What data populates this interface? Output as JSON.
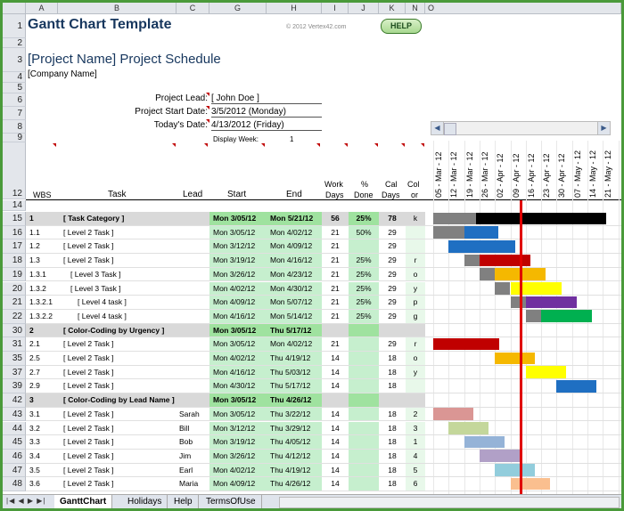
{
  "columns": [
    "A",
    "B",
    "C",
    "G",
    "H",
    "I",
    "J",
    "K",
    "N",
    "O"
  ],
  "title": "Gantt Chart Template",
  "copyright": "© 2012 Vertex42.com",
  "help": "HELP",
  "project_name": "[Project Name] Project Schedule",
  "company": "[Company Name]",
  "labels": {
    "lead": "Project Lead:",
    "start": "Project Start Date:",
    "today": "Today's Date:",
    "week": "Display Week:"
  },
  "values": {
    "lead": "[ John Doe ]",
    "start": "3/5/2012 (Monday)",
    "today": "4/13/2012 (Friday)",
    "week": "1"
  },
  "headers": {
    "wbs": "WBS",
    "task": "Task",
    "lead": "Lead",
    "start": "Start",
    "end": "End",
    "work1": "Work",
    "work2": "Days",
    "done1": "%",
    "done2": "Done",
    "cal1": "Cal",
    "cal2": "Days",
    "col1": "Col",
    "col2": "or"
  },
  "week_dates": [
    "05 - Mar - 12",
    "12 - Mar - 12",
    "19 - Mar - 12",
    "26 - Mar - 12",
    "02 - Apr - 12",
    "09 - Apr - 12",
    "16 - Apr - 12",
    "23 - Apr - 12",
    "30 - Apr - 12",
    "07 - May - 12",
    "14 - May - 12",
    "21 - May - 12"
  ],
  "rows": [
    {
      "num": "15",
      "wbs": "1",
      "task": "[ Task Category ]",
      "lead": "",
      "start": "Mon 3/05/12",
      "end": "Mon 5/21/12",
      "work": "56",
      "done": "25%",
      "cal": "78",
      "color": "k",
      "cat": true
    },
    {
      "num": "16",
      "wbs": "1.1",
      "task": "[ Level 2 Task ]",
      "lead": "",
      "start": "Mon 3/05/12",
      "end": "Mon 4/02/12",
      "work": "21",
      "done": "50%",
      "cal": "29",
      "color": ""
    },
    {
      "num": "17",
      "wbs": "1.2",
      "task": "[ Level 2 Task ]",
      "lead": "",
      "start": "Mon 3/12/12",
      "end": "Mon 4/09/12",
      "work": "21",
      "done": "",
      "cal": "29",
      "color": ""
    },
    {
      "num": "18",
      "wbs": "1.3",
      "task": "[ Level 2 Task ]",
      "lead": "",
      "start": "Mon 3/19/12",
      "end": "Mon 4/16/12",
      "work": "21",
      "done": "25%",
      "cal": "29",
      "color": "r"
    },
    {
      "num": "19",
      "wbs": "1.3.1",
      "task": "[ Level 3 Task ]",
      "lead": "",
      "start": "Mon 3/26/12",
      "end": "Mon 4/23/12",
      "work": "21",
      "done": "25%",
      "cal": "29",
      "color": "o"
    },
    {
      "num": "20",
      "wbs": "1.3.2",
      "task": "[ Level 3 Task ]",
      "lead": "",
      "start": "Mon 4/02/12",
      "end": "Mon 4/30/12",
      "work": "21",
      "done": "25%",
      "cal": "29",
      "color": "y"
    },
    {
      "num": "21",
      "wbs": "1.3.2.1",
      "task": "[ Level 4 task ]",
      "lead": "",
      "start": "Mon 4/09/12",
      "end": "Mon 5/07/12",
      "work": "21",
      "done": "25%",
      "cal": "29",
      "color": "p"
    },
    {
      "num": "22",
      "wbs": "1.3.2.2",
      "task": "[ Level 4 task ]",
      "lead": "",
      "start": "Mon 4/16/12",
      "end": "Mon 5/14/12",
      "work": "21",
      "done": "25%",
      "cal": "29",
      "color": "g"
    },
    {
      "num": "30",
      "wbs": "2",
      "task": "[ Color-Coding by Urgency ]",
      "lead": "",
      "start": "Mon 3/05/12",
      "end": "Thu 5/17/12",
      "work": "",
      "done": "",
      "cal": "",
      "color": "",
      "cat": true
    },
    {
      "num": "31",
      "wbs": "2.1",
      "task": "[ Level 2 Task ]",
      "lead": "",
      "start": "Mon 3/05/12",
      "end": "Mon 4/02/12",
      "work": "21",
      "done": "",
      "cal": "29",
      "color": "r"
    },
    {
      "num": "35",
      "wbs": "2.5",
      "task": "[ Level 2 Task ]",
      "lead": "",
      "start": "Mon 4/02/12",
      "end": "Thu 4/19/12",
      "work": "14",
      "done": "",
      "cal": "18",
      "color": "o"
    },
    {
      "num": "37",
      "wbs": "2.7",
      "task": "[ Level 2 Task ]",
      "lead": "",
      "start": "Mon 4/16/12",
      "end": "Thu 5/03/12",
      "work": "14",
      "done": "",
      "cal": "18",
      "color": "y"
    },
    {
      "num": "39",
      "wbs": "2.9",
      "task": "[ Level 2 Task ]",
      "lead": "",
      "start": "Mon 4/30/12",
      "end": "Thu 5/17/12",
      "work": "14",
      "done": "",
      "cal": "18",
      "color": ""
    },
    {
      "num": "42",
      "wbs": "3",
      "task": "[ Color-Coding by Lead Name ]",
      "lead": "",
      "start": "Mon 3/05/12",
      "end": "Thu 4/26/12",
      "work": "",
      "done": "",
      "cal": "",
      "color": "",
      "cat": true
    },
    {
      "num": "43",
      "wbs": "3.1",
      "task": "[ Level 2 Task ]",
      "lead": "Sarah",
      "start": "Mon 3/05/12",
      "end": "Thu 3/22/12",
      "work": "14",
      "done": "",
      "cal": "18",
      "color": "2"
    },
    {
      "num": "44",
      "wbs": "3.2",
      "task": "[ Level 2 Task ]",
      "lead": "Bill",
      "start": "Mon 3/12/12",
      "end": "Thu 3/29/12",
      "work": "14",
      "done": "",
      "cal": "18",
      "color": "3"
    },
    {
      "num": "45",
      "wbs": "3.3",
      "task": "[ Level 2 Task ]",
      "lead": "Bob",
      "start": "Mon 3/19/12",
      "end": "Thu 4/05/12",
      "work": "14",
      "done": "",
      "cal": "18",
      "color": "1"
    },
    {
      "num": "46",
      "wbs": "3.4",
      "task": "[ Level 2 Task ]",
      "lead": "Jim",
      "start": "Mon 3/26/12",
      "end": "Thu 4/12/12",
      "work": "14",
      "done": "",
      "cal": "18",
      "color": "4"
    },
    {
      "num": "47",
      "wbs": "3.5",
      "task": "[ Level 2 Task ]",
      "lead": "Earl",
      "start": "Mon 4/02/12",
      "end": "Thu 4/19/12",
      "work": "14",
      "done": "",
      "cal": "18",
      "color": "5"
    },
    {
      "num": "48",
      "wbs": "3.6",
      "task": "[ Level 2 Task ]",
      "lead": "Maria",
      "start": "Mon 4/09/12",
      "end": "Thu 4/26/12",
      "work": "14",
      "done": "",
      "cal": "18",
      "color": "6"
    }
  ],
  "gantt_bars": [
    {
      "row": 0,
      "segments": [
        {
          "start": 0,
          "len": 2.75,
          "color": "#808080"
        },
        {
          "start": 2.75,
          "len": 8.45,
          "color": "#000000"
        }
      ]
    },
    {
      "row": 1,
      "segments": [
        {
          "start": 0,
          "len": 2,
          "color": "#808080"
        },
        {
          "start": 2,
          "len": 2.2,
          "color": "#1f6fc2"
        }
      ]
    },
    {
      "row": 2,
      "segments": [
        {
          "start": 1,
          "len": 4.3,
          "color": "#1f6fc2"
        }
      ]
    },
    {
      "row": 3,
      "segments": [
        {
          "start": 2,
          "len": 1,
          "color": "#808080"
        },
        {
          "start": 3,
          "len": 3.3,
          "color": "#c00000"
        }
      ]
    },
    {
      "row": 4,
      "segments": [
        {
          "start": 3,
          "len": 1,
          "color": "#808080"
        },
        {
          "start": 4,
          "len": 3.3,
          "color": "#f5b800"
        }
      ]
    },
    {
      "row": 5,
      "segments": [
        {
          "start": 4,
          "len": 1,
          "color": "#808080"
        },
        {
          "start": 5,
          "len": 3.3,
          "color": "#ffff00"
        }
      ]
    },
    {
      "row": 6,
      "segments": [
        {
          "start": 5,
          "len": 1,
          "color": "#808080"
        },
        {
          "start": 6,
          "len": 3.3,
          "color": "#7030a0"
        }
      ]
    },
    {
      "row": 7,
      "segments": [
        {
          "start": 6,
          "len": 1,
          "color": "#808080"
        },
        {
          "start": 7,
          "len": 3.3,
          "color": "#00b050"
        }
      ]
    },
    {
      "row": 9,
      "segments": [
        {
          "start": 0,
          "len": 4.3,
          "color": "#c00000"
        }
      ]
    },
    {
      "row": 10,
      "segments": [
        {
          "start": 4,
          "len": 2.6,
          "color": "#f5b800"
        }
      ]
    },
    {
      "row": 11,
      "segments": [
        {
          "start": 6,
          "len": 2.6,
          "color": "#ffff00"
        }
      ]
    },
    {
      "row": 12,
      "segments": [
        {
          "start": 8,
          "len": 2.6,
          "color": "#1f6fc2"
        }
      ]
    },
    {
      "row": 14,
      "segments": [
        {
          "start": 0,
          "len": 2.6,
          "color": "#da9694"
        }
      ]
    },
    {
      "row": 15,
      "segments": [
        {
          "start": 1,
          "len": 2.6,
          "color": "#c4d79b"
        }
      ]
    },
    {
      "row": 16,
      "segments": [
        {
          "start": 2,
          "len": 2.6,
          "color": "#95b3d7"
        }
      ]
    },
    {
      "row": 17,
      "segments": [
        {
          "start": 3,
          "len": 2.6,
          "color": "#b1a0c7"
        }
      ]
    },
    {
      "row": 18,
      "segments": [
        {
          "start": 4,
          "len": 2.6,
          "color": "#92cddc"
        }
      ]
    },
    {
      "row": 19,
      "segments": [
        {
          "start": 5,
          "len": 2.6,
          "color": "#fabf8f"
        }
      ]
    }
  ],
  "today_week_offset": 5.6,
  "sheet_tabs": [
    "GanttChart",
    "Holidays",
    "Help",
    "TermsOfUse"
  ]
}
